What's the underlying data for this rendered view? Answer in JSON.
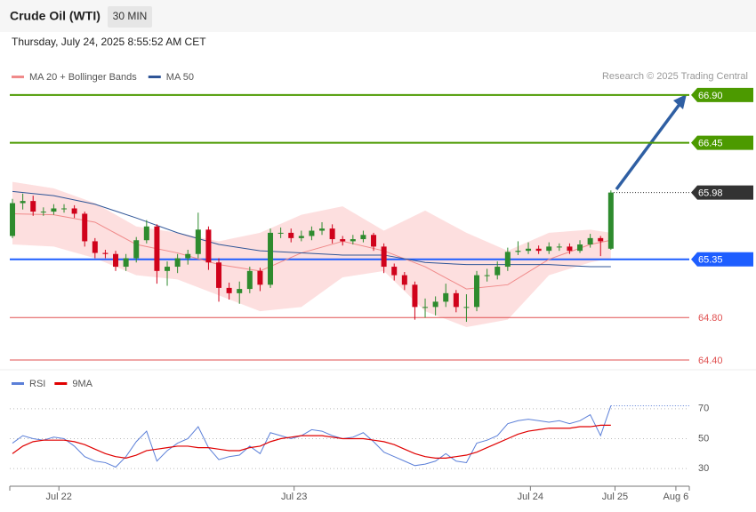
{
  "header": {
    "title": "Crude Oil (WTI)",
    "timeframe": "30 MIN",
    "datetime": "Thursday, July 24, 2025 8:55:52 AM CET",
    "credit": "Research © 2025 Trading Central"
  },
  "chart_data": [
    {
      "type": "candlestick",
      "xlim": [
        -0.26,
        65.6
      ],
      "ylim": [
        64.32,
        67.0
      ],
      "up_color": "#2e8b2e",
      "down_color": "#d0021b",
      "open": [
        65.57,
        65.88,
        65.9,
        65.8,
        65.8,
        65.83,
        65.83,
        65.78,
        65.52,
        65.41,
        65.4,
        65.28,
        65.36,
        65.53,
        65.66,
        65.24,
        65.28,
        65.36,
        65.4,
        65.63,
        65.32,
        65.08,
        65.03,
        65.07,
        65.24,
        65.11,
        65.6,
        65.6,
        65.55,
        65.57,
        65.62,
        65.64,
        65.54,
        65.52,
        65.54,
        65.58,
        65.47,
        65.28,
        65.2,
        65.11,
        64.9,
        64.9,
        64.95,
        65.03,
        64.9,
        64.9,
        65.2,
        65.2,
        65.28,
        65.42,
        65.43,
        65.45,
        65.43,
        65.47,
        65.47,
        65.43,
        65.49,
        65.55,
        65.45
      ],
      "high": [
        65.92,
        65.97,
        65.95,
        65.84,
        65.87,
        65.87,
        65.86,
        65.8,
        65.55,
        65.44,
        65.43,
        65.4,
        65.56,
        65.72,
        65.68,
        65.33,
        65.4,
        65.44,
        65.79,
        65.66,
        65.36,
        65.13,
        65.14,
        65.28,
        65.27,
        65.64,
        65.65,
        65.64,
        65.62,
        65.66,
        65.7,
        65.68,
        65.57,
        65.58,
        65.62,
        65.6,
        65.5,
        65.31,
        65.23,
        65.14,
        64.98,
        65.0,
        65.12,
        65.06,
        65.02,
        65.24,
        65.26,
        65.33,
        65.46,
        65.52,
        65.51,
        65.48,
        65.51,
        65.5,
        65.5,
        65.53,
        65.59,
        65.57,
        66.0
      ],
      "low": [
        65.55,
        65.82,
        65.76,
        65.76,
        65.77,
        65.79,
        65.74,
        65.47,
        65.36,
        65.36,
        65.24,
        65.24,
        65.32,
        65.5,
        65.12,
        65.1,
        65.22,
        65.3,
        65.36,
        65.25,
        64.95,
        64.97,
        64.93,
        65.03,
        65.05,
        65.08,
        65.55,
        65.51,
        65.52,
        65.53,
        65.58,
        65.5,
        65.48,
        65.49,
        65.51,
        65.43,
        65.22,
        65.15,
        65.06,
        64.78,
        64.8,
        64.82,
        64.9,
        64.85,
        64.76,
        64.86,
        65.14,
        65.16,
        65.24,
        65.39,
        65.4,
        65.4,
        65.4,
        65.43,
        65.4,
        65.41,
        65.46,
        65.38,
        65.44
      ],
      "close": [
        65.88,
        65.9,
        65.8,
        65.8,
        65.83,
        65.83,
        65.78,
        65.52,
        65.41,
        65.4,
        65.28,
        65.36,
        65.53,
        65.66,
        65.24,
        65.28,
        65.36,
        65.4,
        65.63,
        65.32,
        65.08,
        65.03,
        65.07,
        65.24,
        65.11,
        65.6,
        65.6,
        65.55,
        65.57,
        65.62,
        65.64,
        65.54,
        65.52,
        65.54,
        65.58,
        65.47,
        65.28,
        65.2,
        65.11,
        64.9,
        64.9,
        64.95,
        65.03,
        64.9,
        64.9,
        65.2,
        65.2,
        65.28,
        65.42,
        65.43,
        65.45,
        65.43,
        65.47,
        65.47,
        65.43,
        65.49,
        65.55,
        65.52,
        65.98
      ],
      "overlays": [
        {
          "name": "MA 20 + Bollinger Bands",
          "color": "#f08a8a",
          "band_color": "#fdd9d9",
          "x": [
            0,
            4,
            8,
            12,
            16,
            20,
            24,
            28,
            32,
            36,
            40,
            44,
            48,
            52,
            56,
            58
          ],
          "values": [
            65.78,
            65.77,
            65.7,
            65.49,
            65.41,
            65.3,
            65.24,
            65.41,
            65.52,
            65.43,
            65.28,
            65.07,
            65.11,
            65.35,
            65.49,
            65.53
          ],
          "upper": [
            66.08,
            66.02,
            65.88,
            65.66,
            65.6,
            65.52,
            65.6,
            65.77,
            65.85,
            65.62,
            65.81,
            65.6,
            65.43,
            65.6,
            65.63,
            65.6
          ],
          "lower": [
            65.49,
            65.47,
            65.36,
            65.2,
            65.16,
            65.01,
            64.86,
            64.9,
            65.18,
            65.24,
            64.86,
            64.71,
            64.78,
            65.2,
            65.32,
            65.36
          ]
        },
        {
          "name": "MA 50",
          "color": "#2f5597",
          "x": [
            0,
            4,
            8,
            12,
            16,
            20,
            24,
            28,
            32,
            36,
            40,
            44,
            48,
            52,
            56,
            58
          ],
          "values": [
            65.99,
            65.95,
            65.87,
            65.74,
            65.6,
            65.49,
            65.43,
            65.41,
            65.39,
            65.39,
            65.32,
            65.3,
            65.3,
            65.3,
            65.28,
            65.28
          ]
        }
      ],
      "levels": [
        {
          "value": 66.9,
          "label": "66.90",
          "color": "#4c9a00",
          "style": "solid",
          "box": true
        },
        {
          "value": 66.45,
          "label": "66.45",
          "color": "#4c9a00",
          "style": "solid",
          "box": true
        },
        {
          "value": 65.98,
          "label": "65.98",
          "color": "#333333",
          "style": "dotted",
          "box": true
        },
        {
          "value": 65.35,
          "label": "65.35",
          "color": "#1e5eff",
          "style": "solid",
          "box": true
        },
        {
          "value": 64.8,
          "label": "64.80",
          "color": "#e05050",
          "style": "thin",
          "box": false
        },
        {
          "value": 64.4,
          "label": "64.40",
          "color": "#e05050",
          "style": "thin",
          "box": false
        }
      ]
    },
    {
      "type": "line",
      "xlim": [
        -0.26,
        65.6
      ],
      "ylim": [
        20,
        80
      ],
      "yticks": [
        30,
        50,
        70
      ],
      "grid": true,
      "xticks": [
        {
          "value": 4.5,
          "label": "Jul 22"
        },
        {
          "value": 27.3,
          "label": "Jul 23"
        },
        {
          "value": 50.2,
          "label": "Jul 24"
        },
        {
          "value": 58.4,
          "label": "Jul 25"
        },
        {
          "value": 64.3,
          "label": "Aug 6"
        }
      ],
      "series": [
        {
          "name": "RSI",
          "color": "#5b7fd8",
          "values": [
            47,
            52,
            50,
            49,
            51,
            50,
            45,
            38,
            35,
            34,
            31,
            38,
            48,
            55,
            35,
            42,
            47,
            50,
            58,
            44,
            36,
            38,
            39,
            45,
            40,
            54,
            52,
            50,
            52,
            56,
            55,
            52,
            50,
            51,
            54,
            48,
            41,
            38,
            35,
            32,
            33,
            35,
            40,
            35,
            34,
            47,
            49,
            52,
            60,
            62,
            63,
            62,
            61,
            62,
            60,
            62,
            66,
            52,
            72
          ]
        },
        {
          "name": "9MA",
          "color": "#e00000",
          "values": [
            40,
            45,
            48,
            49,
            49,
            49,
            48,
            46,
            43,
            40,
            38,
            37,
            39,
            42,
            43,
            44,
            45,
            45,
            44,
            44,
            43,
            42,
            42,
            44,
            45,
            48,
            50,
            51,
            52,
            52,
            52,
            51,
            50,
            50,
            50,
            49,
            48,
            46,
            43,
            40,
            38,
            37,
            37,
            38,
            39,
            41,
            44,
            47,
            50,
            53,
            55,
            56,
            57,
            57,
            57,
            58,
            58,
            59,
            59
          ]
        }
      ]
    }
  ]
}
